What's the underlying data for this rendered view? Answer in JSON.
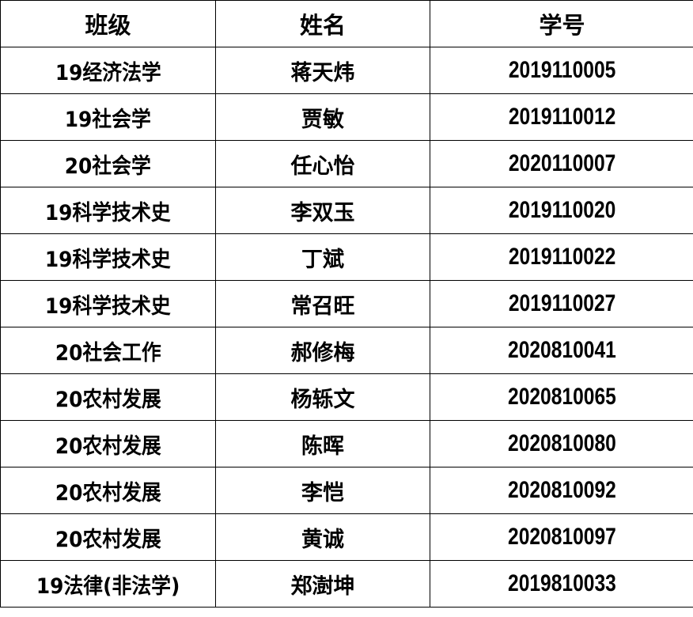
{
  "table": {
    "headers": [
      "班级",
      "姓名",
      "学号"
    ],
    "rows": [
      {
        "class": "19经济法学",
        "name": "蒋天炜",
        "id": "2019110005"
      },
      {
        "class": "19社会学",
        "name": "贾敏",
        "id": "2019110012"
      },
      {
        "class": "20社会学",
        "name": "任心怡",
        "id": "2020110007"
      },
      {
        "class": "19科学技术史",
        "name": "李双玉",
        "id": "2019110020"
      },
      {
        "class": "19科学技术史",
        "name": "丁斌",
        "id": "2019110022"
      },
      {
        "class": "19科学技术史",
        "name": "常召旺",
        "id": "2019110027"
      },
      {
        "class": "20社会工作",
        "name": "郝修梅",
        "id": "2020810041"
      },
      {
        "class": "20农村发展",
        "name": "杨轹文",
        "id": "2020810065"
      },
      {
        "class": "20农村发展",
        "name": "陈晖",
        "id": "2020810080"
      },
      {
        "class": "20农村发展",
        "name": "李恺",
        "id": "2020810092"
      },
      {
        "class": "20农村发展",
        "name": "黄诚",
        "id": "2020810097"
      },
      {
        "class": "19法律(非法学)",
        "name": "郑澍坤",
        "id": "2019810033"
      }
    ]
  }
}
